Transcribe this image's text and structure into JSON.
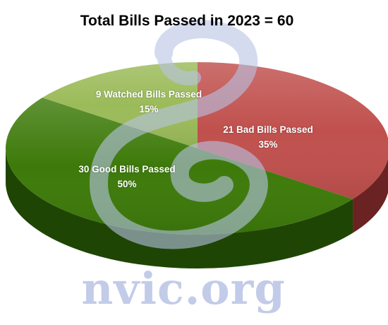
{
  "chart_data": {
    "type": "pie",
    "title": "Total Bills Passed in 2023 = 60",
    "slices": [
      {
        "label": "21 Bad Bills Passed",
        "percent_label": "35%",
        "value": 21,
        "color": "#c0504d",
        "side_color": "#6b2222"
      },
      {
        "label": "30 Good Bills Passed",
        "percent_label": "50%",
        "value": 30,
        "color": "#3d7a0a",
        "side_color": "#1f4504"
      },
      {
        "label": "9 Watched Bills Passed",
        "percent_label": "15%",
        "value": 9,
        "color": "#9bbb59",
        "side_color": "#5a7030"
      }
    ],
    "style": "3d-perspective"
  },
  "watermark": {
    "text": "nvic.org",
    "color": "#b8c4e6"
  }
}
